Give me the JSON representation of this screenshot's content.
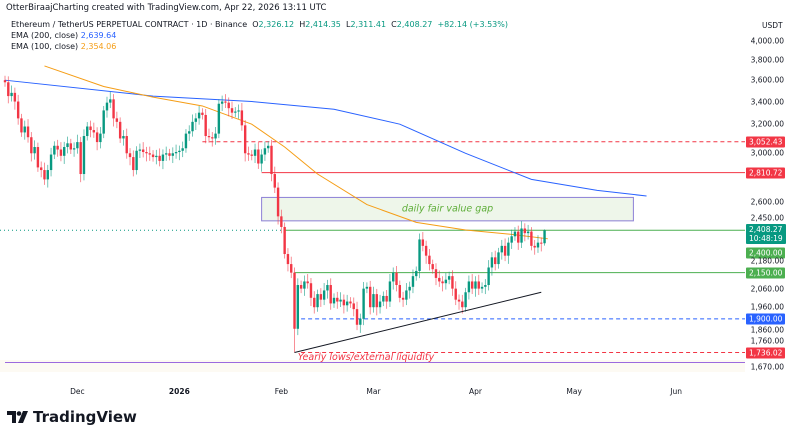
{
  "header": {
    "credit": "OtterBiraajCharting created with TradingView.com, Apr 22, 2026 13:11 UTC",
    "symbol": "Ethereum / TetherUS PERPETUAL CONTRACT · 1D · Binance",
    "ohlc": {
      "o_label": "O",
      "o": "2,326.12",
      "h_label": "H",
      "h": "2,414.35",
      "l_label": "L",
      "l": "2,311.41",
      "c_label": "C",
      "c": "2,408.27",
      "change": "+82.14 (+3.53%)"
    },
    "ema200": {
      "label": "EMA (200, close)",
      "value": "2,639.64"
    },
    "ema100": {
      "label": "EMA (100, close)",
      "value": "2,354.06"
    }
  },
  "logo_text": "TradingView",
  "chart_data": {
    "type": "candlestick",
    "currency": "USDT",
    "y_scale": "log",
    "ylim": [
      1640,
      4150
    ],
    "grid": false,
    "y_ticks": [
      "4,000.00",
      "3,800.00",
      "3,600.00",
      "3,400.00",
      "3,200.00",
      "3,000.00",
      "2,600.00",
      "2,450.00",
      "2,180.00",
      "2,060.00",
      "1,960.00",
      "1,860.00",
      "1,760.00",
      "1,670.00"
    ],
    "x_ticks": [
      {
        "label": "Dec",
        "day": 22
      },
      {
        "label": "2026",
        "day": 53
      },
      {
        "label": "Feb",
        "day": 84
      },
      {
        "label": "Mar",
        "day": 112
      },
      {
        "label": "Apr",
        "day": 143
      },
      {
        "label": "May",
        "day": 173
      },
      {
        "label": "Jun",
        "day": 204
      }
    ],
    "first_date": "2025-11-09",
    "first_open": 3600,
    "close": [
      3580,
      3450,
      3480,
      3400,
      3250,
      3130,
      3180,
      3090,
      2960,
      3010,
      2850,
      2830,
      2760,
      2830,
      2950,
      3020,
      2990,
      2940,
      3010,
      3040,
      2990,
      3000,
      3050,
      2800,
      3100,
      3180,
      3150,
      3130,
      3050,
      3120,
      3320,
      3390,
      3420,
      3250,
      3220,
      3080,
      3100,
      2960,
      2930,
      2830,
      2980,
      2990,
      2970,
      2960,
      2950,
      2930,
      2940,
      2900,
      2950,
      2960,
      2940,
      2960,
      2970,
      2980,
      3000,
      3120,
      3140,
      3220,
      3250,
      3300,
      3280,
      3100,
      3090,
      3080,
      3120,
      3380,
      3400,
      3390,
      3340,
      3300,
      3310,
      3320,
      3190,
      2960,
      2950,
      2940,
      2990,
      2880,
      2950,
      3000,
      3020,
      2800,
      2700,
      2500,
      2430,
      2260,
      2200,
      2150,
      1850,
      2080,
      2060,
      2100,
      2090,
      2010,
      1960,
      2030,
      2000,
      2050,
      2080,
      1980,
      2010,
      1990,
      2000,
      1970,
      1990,
      1980,
      1950,
      1870,
      1900,
      2060,
      2070,
      1960,
      2030,
      1960,
      1990,
      2020,
      1990,
      2100,
      2150,
      2080,
      2010,
      2000,
      2050,
      2070,
      2130,
      2160,
      2350,
      2310,
      2250,
      2200,
      2170,
      2120,
      2100,
      2090,
      2110,
      2130,
      2060,
      2000,
      1990,
      1960,
      2040,
      2100,
      2060,
      2100,
      2060,
      2070,
      2080,
      2180,
      2240,
      2200,
      2270,
      2310,
      2250,
      2330,
      2370,
      2400,
      2330,
      2420,
      2390,
      2400,
      2310,
      2300,
      2330,
      2326.12,
      2408.27
    ],
    "last_candle": {
      "open": 2326.12,
      "high": 2414.35,
      "low": 2311.41,
      "close": 2408.27
    },
    "ema200_points": [
      [
        0,
        3600
      ],
      [
        45,
        3450
      ],
      [
        75,
        3400
      ],
      [
        100,
        3330
      ],
      [
        120,
        3200
      ],
      [
        140,
        2960
      ],
      [
        160,
        2760
      ],
      [
        180,
        2680
      ],
      [
        195,
        2640
      ]
    ],
    "ema100_points": [
      [
        12,
        3740
      ],
      [
        30,
        3540
      ],
      [
        45,
        3440
      ],
      [
        60,
        3360
      ],
      [
        75,
        3200
      ],
      [
        85,
        3010
      ],
      [
        95,
        2800
      ],
      [
        110,
        2580
      ],
      [
        125,
        2460
      ],
      [
        140,
        2410
      ],
      [
        155,
        2380
      ],
      [
        165,
        2354
      ]
    ],
    "colors": {
      "up": "#089981",
      "down": "#f23645",
      "ema200": "#2962ff",
      "ema100": "#f59d15"
    },
    "levels": [
      {
        "price": 3052.43,
        "label": "3,052.43",
        "style": "dashed",
        "color": "#f23645",
        "from_day": 60
      },
      {
        "price": 2810.72,
        "label": "2,810.72",
        "style": "solid",
        "color": "#f23645",
        "from_day": 78
      },
      {
        "price": 2408.27,
        "label": "2,408.27",
        "sublabel": "10:48:19",
        "style": "solid",
        "color": "#4caf50",
        "from_day": 85,
        "chip_color": "#089981"
      },
      {
        "price": 2400.0,
        "label": "2,400.00",
        "style": "none",
        "color": "#4caf50",
        "from_day": 85,
        "chip_color": "#4caf50"
      },
      {
        "price": 2150.0,
        "label": "2,150.00",
        "style": "solid",
        "color": "#4caf50",
        "from_day": 88
      },
      {
        "price": 1900.0,
        "label": "1,900.00",
        "style": "dashed",
        "color": "#2962ff",
        "from_day": 90
      },
      {
        "price": 1736.02,
        "label": "1,736.02",
        "style": "dashed",
        "color": "#f23645",
        "from_day": 90
      },
      {
        "price": 1690,
        "label": "",
        "style": "solid",
        "color": "#9c6ade",
        "from_day": 0
      }
    ],
    "zones": [
      {
        "label": "daily fair value gap",
        "from_day": 78,
        "to_day": 191,
        "top": 2630,
        "bottom": 2470,
        "color": "#4caf50"
      }
    ],
    "trendline": {
      "from": [
        88,
        1736
      ],
      "to": [
        163,
        2040
      ]
    },
    "annotations": [
      {
        "text": "Yearly lows/external liquidity",
        "day": 89,
        "price": 1712,
        "color": "#f23645"
      }
    ]
  }
}
